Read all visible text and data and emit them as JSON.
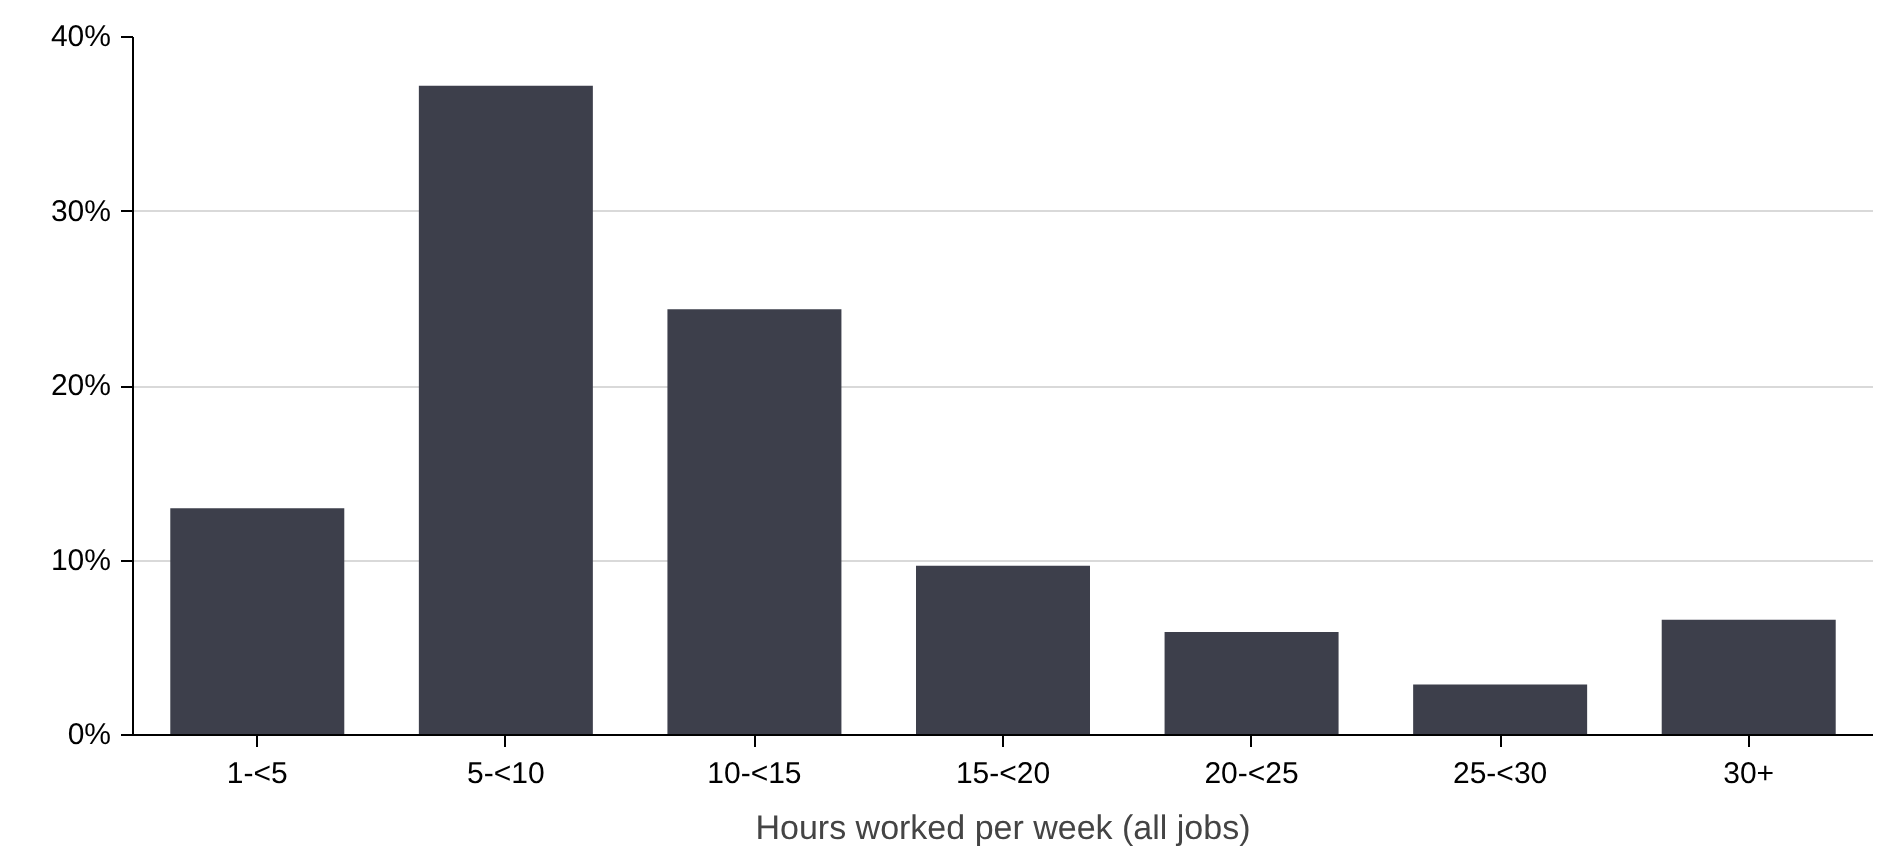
{
  "chart_data": {
    "type": "bar",
    "xlabel": "Hours worked per week (all jobs)",
    "categories": [
      "1-<5",
      "5-<10",
      "10-<15",
      "15-<20",
      "20-<25",
      "25-<30",
      "30+"
    ],
    "values": [
      13.0,
      37.2,
      24.4,
      9.7,
      5.9,
      2.9,
      6.6
    ],
    "color": "#3d3f4b",
    "ylim": [
      0,
      40
    ],
    "yticks": [
      {
        "value": 0,
        "label": "0%"
      },
      {
        "value": 10,
        "label": "10%"
      },
      {
        "value": 20,
        "label": "20%"
      },
      {
        "value": 30,
        "label": "30%"
      },
      {
        "value": 40,
        "label": "40%"
      }
    ],
    "grid": "y"
  }
}
